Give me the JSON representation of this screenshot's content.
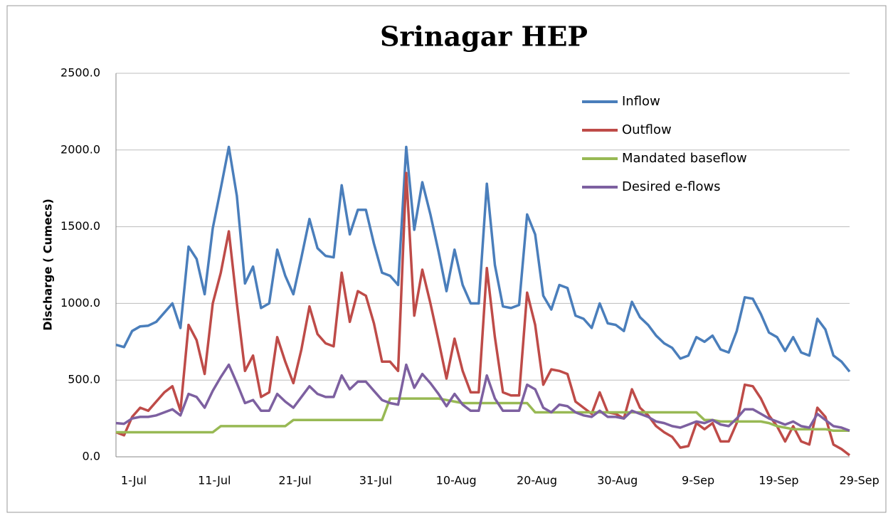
{
  "chart_data": {
    "type": "line",
    "title": "Srinagar HEP",
    "y_label": "Discharge ( Cumecs)",
    "categories": [
      "1-Jul",
      null,
      null,
      null,
      null,
      null,
      null,
      null,
      null,
      null,
      "11-Jul",
      null,
      null,
      null,
      null,
      null,
      null,
      null,
      null,
      null,
      "21-Jul",
      null,
      null,
      null,
      null,
      null,
      null,
      null,
      null,
      null,
      "31-Jul",
      null,
      null,
      null,
      null,
      null,
      null,
      null,
      null,
      null,
      "10-Aug",
      null,
      null,
      null,
      null,
      null,
      null,
      null,
      null,
      null,
      "20-Aug",
      null,
      null,
      null,
      null,
      null,
      null,
      null,
      null,
      null,
      "30-Aug",
      null,
      null,
      null,
      null,
      null,
      null,
      null,
      null,
      null,
      "9-Sep",
      null,
      null,
      null,
      null,
      null,
      null,
      null,
      null,
      null,
      "19-Sep",
      null,
      null,
      null,
      null,
      null,
      null,
      null,
      null,
      null,
      "29-Sep",
      null
    ],
    "series": [
      {
        "name": "Inflow",
        "color": "#4a7ebb",
        "values": [
          730,
          715,
          820,
          850,
          855,
          880,
          940,
          1000,
          840,
          1370,
          1290,
          1060,
          1490,
          1750,
          2020,
          1700,
          1130,
          1240,
          970,
          1000,
          1350,
          1180,
          1060,
          1300,
          1550,
          1360,
          1310,
          1300,
          1770,
          1450,
          1610,
          1610,
          1390,
          1200,
          1180,
          1120,
          2020,
          1480,
          1790,
          1580,
          1340,
          1080,
          1350,
          1120,
          1000,
          1000,
          1780,
          1250,
          980,
          970,
          990,
          1580,
          1450,
          1050,
          960,
          1120,
          1100,
          920,
          900,
          840,
          1000,
          870,
          860,
          820,
          1010,
          910,
          860,
          790,
          740,
          710,
          640,
          660,
          780,
          750,
          790,
          700,
          680,
          820,
          1040,
          1030,
          930,
          810,
          780,
          690,
          780,
          680,
          660,
          900,
          830,
          660,
          620,
          555
        ]
      },
      {
        "name": "Outflow",
        "color": "#be4b48",
        "values": [
          160,
          140,
          260,
          320,
          300,
          360,
          420,
          460,
          300,
          860,
          760,
          540,
          1000,
          1200,
          1470,
          1000,
          560,
          660,
          390,
          420,
          780,
          620,
          480,
          700,
          980,
          800,
          740,
          720,
          1200,
          880,
          1080,
          1050,
          870,
          620,
          620,
          560,
          1850,
          920,
          1220,
          1000,
          760,
          510,
          770,
          560,
          420,
          420,
          1230,
          780,
          420,
          400,
          400,
          1070,
          860,
          470,
          570,
          560,
          540,
          360,
          320,
          280,
          420,
          290,
          280,
          250,
          440,
          320,
          270,
          200,
          160,
          130,
          60,
          70,
          220,
          180,
          220,
          100,
          100,
          220,
          470,
          460,
          380,
          270,
          200,
          100,
          200,
          100,
          80,
          320,
          260,
          80,
          50,
          10
        ]
      },
      {
        "name": "Mandated baseflow",
        "color": "#98b954",
        "values": [
          160,
          160,
          160,
          160,
          160,
          160,
          160,
          160,
          160,
          160,
          160,
          160,
          160,
          200,
          200,
          200,
          200,
          200,
          200,
          200,
          200,
          200,
          240,
          240,
          240,
          240,
          240,
          240,
          240,
          240,
          240,
          240,
          240,
          240,
          380,
          380,
          380,
          380,
          380,
          380,
          380,
          370,
          360,
          350,
          350,
          350,
          350,
          350,
          350,
          350,
          350,
          350,
          290,
          290,
          290,
          290,
          290,
          290,
          290,
          290,
          290,
          290,
          290,
          290,
          290,
          290,
          290,
          290,
          290,
          290,
          290,
          290,
          290,
          240,
          240,
          230,
          230,
          230,
          230,
          230,
          230,
          220,
          200,
          190,
          180,
          180,
          180,
          180,
          180,
          170,
          170,
          170
        ]
      },
      {
        "name": "Desired e-flows",
        "color": "#7d60a0",
        "values": [
          220,
          215,
          250,
          260,
          260,
          270,
          290,
          310,
          270,
          410,
          390,
          320,
          430,
          520,
          600,
          480,
          350,
          370,
          300,
          300,
          410,
          360,
          320,
          390,
          460,
          410,
          390,
          390,
          530,
          440,
          490,
          490,
          430,
          370,
          350,
          340,
          600,
          450,
          540,
          480,
          410,
          330,
          410,
          340,
          300,
          300,
          530,
          380,
          300,
          300,
          300,
          470,
          440,
          320,
          290,
          340,
          330,
          290,
          270,
          260,
          300,
          260,
          260,
          250,
          300,
          280,
          260,
          230,
          220,
          200,
          190,
          210,
          230,
          220,
          240,
          210,
          200,
          250,
          310,
          310,
          280,
          250,
          230,
          210,
          230,
          200,
          190,
          280,
          240,
          200,
          190,
          170
        ]
      }
    ],
    "ylim": [
      0,
      2500
    ],
    "yticks": [
      {
        "value": 0,
        "label": "0.0"
      },
      {
        "value": 500,
        "label": "500.0"
      },
      {
        "value": 1000,
        "label": "1000.0"
      },
      {
        "value": 1500,
        "label": "1500.0"
      },
      {
        "value": 2000,
        "label": "2000.0"
      },
      {
        "value": 2500,
        "label": "2500.0"
      }
    ],
    "grid": true,
    "legend": "top-right"
  }
}
